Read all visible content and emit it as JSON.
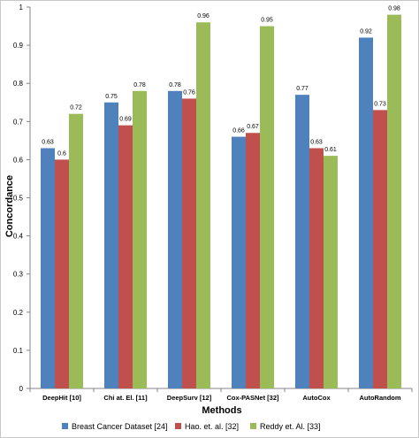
{
  "chart_data": {
    "type": "bar",
    "title": "",
    "xlabel": "Methods",
    "ylabel": "Concordance",
    "ylim": [
      0,
      1
    ],
    "yticks": [
      "0",
      "0.1",
      "0.2",
      "0.3",
      "0.4",
      "0.5",
      "0.6",
      "0.7",
      "0.8",
      "0.9",
      "1"
    ],
    "grid": false,
    "legend_position": "bottom",
    "categories": [
      "DeepHit [10]",
      "Chi at. El. [11]",
      "DeepSurv [12]",
      "Cox-PASNet [32]",
      "AutoCox",
      "AutoRandom"
    ],
    "series": [
      {
        "name": "Breast Cancer Dataset [24]",
        "color": "#4f81bd",
        "values": [
          0.63,
          0.75,
          0.78,
          0.66,
          0.77,
          0.92
        ],
        "labels": [
          "0.63",
          "0.75",
          "0.78",
          "0.66",
          "0.77",
          "0.92"
        ]
      },
      {
        "name": "Hao. et. al. [32]",
        "color": "#c0504d",
        "values": [
          0.6,
          0.69,
          0.76,
          0.67,
          0.63,
          0.73
        ],
        "labels": [
          "0.6",
          "0.69",
          "0.76",
          "0.67",
          "0.63",
          "0.73"
        ]
      },
      {
        "name": "Reddy et. Al. [33]",
        "color": "#9bbb59",
        "values": [
          0.72,
          0.78,
          0.96,
          0.95,
          0.61,
          0.98
        ],
        "labels": [
          "0.72",
          "0.78",
          "0.96",
          "0.95",
          "0.61",
          "0.98"
        ]
      }
    ]
  }
}
